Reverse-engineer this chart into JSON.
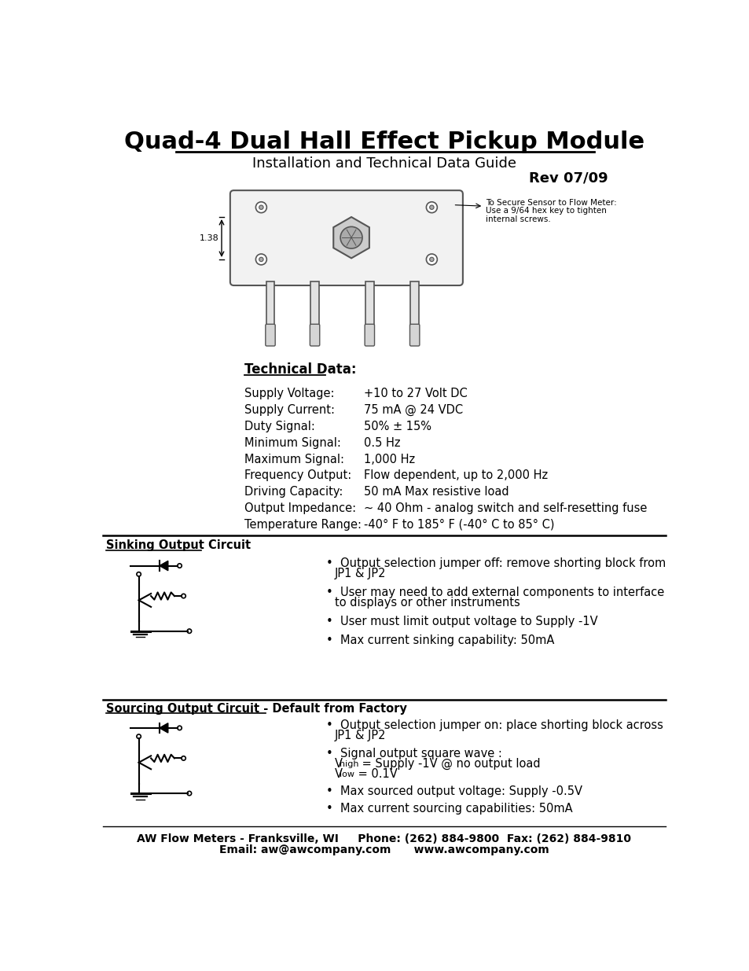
{
  "title": "Quad-4 Dual Hall Effect Pickup Module",
  "subtitle": "Installation and Technical Data Guide",
  "rev": "Rev 07/09",
  "tech_data_label": "Technical Data:",
  "tech_data": [
    [
      "Supply Voltage:",
      "+10 to 27 Volt DC"
    ],
    [
      "Supply Current:",
      "75 mA @ 24 VDC"
    ],
    [
      "Duty Signal:",
      "50% ± 15%"
    ],
    [
      "Minimum Signal:",
      "0.5 Hz"
    ],
    [
      "Maximum Signal:",
      "1,000 Hz"
    ],
    [
      "Frequency Output:",
      "Flow dependent, up to 2,000 Hz"
    ],
    [
      "Driving Capacity:",
      "50 mA Max resistive load"
    ],
    [
      "Output Impedance:",
      "~ 40 Ohm - analog switch and self-resetting fuse"
    ],
    [
      "Temperature Range:",
      "-40° F to 185° F (-40° C to 85° C)"
    ]
  ],
  "sinking_title": "Sinking Output Circuit",
  "sinking_bullets": [
    "Output selection jumper off: remove shorting block from\n  JP1 & JP2",
    "User may need to add external components to interface\n  to displays or other instruments",
    "User must limit output voltage to Supply -1V",
    "Max current sinking capability: 50mA"
  ],
  "sourcing_title": "Sourcing Output Circuit - Default from Factory",
  "sourcing_bullets": [
    "Output selection jumper on: place shorting block across\n  JP1 & JP2",
    "Signal output square wave :",
    "  Vhigh = Supply -1V @ no output load",
    "  Vlow = 0.1V",
    "Max sourced output voltage: Supply -0.5V",
    "Max current sourcing capabilities: 50mA"
  ],
  "footer_line1": "AW Flow Meters - Franksville, WI     Phone: (262) 884-9800  Fax: (262) 884-9810",
  "footer_line2": "Email: aw@awcompany.com      www.awcompany.com",
  "bg_color": "#ffffff",
  "text_color": "#000000"
}
